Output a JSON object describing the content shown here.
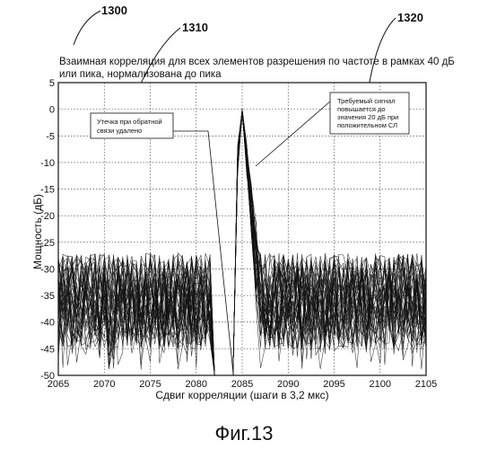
{
  "figure": {
    "ref_numbers": {
      "main": "1300",
      "left_callout": "1310",
      "right_callout": "1320"
    },
    "caption": "Фиг.13"
  },
  "chart_data": {
    "type": "line",
    "title_line1": "Взаимная корреляция для всех элементов разрешения по частоте в рамках 40 дБ",
    "title_line2": "или пика, нормализована до пика",
    "xlabel": "Сдвиг корреляции (шаги в 3,2 мкс)",
    "ylabel": "Мощность (дБ)",
    "xlim": [
      2065,
      2105
    ],
    "ylim": [
      -50,
      5
    ],
    "x_ticks": [
      2065,
      2070,
      2075,
      2080,
      2085,
      2090,
      2095,
      2100,
      2105
    ],
    "y_ticks": [
      5,
      0,
      -5,
      -10,
      -15,
      -20,
      -25,
      -30,
      -35,
      -40,
      -45,
      -50
    ],
    "grid": true,
    "num_traces": 40,
    "noise_floor_db": [
      -45,
      -27
    ],
    "peak": {
      "x": 2085,
      "y": 0
    },
    "notch_x": [
      2082,
      2084
    ],
    "annotations": [
      {
        "id": "1310",
        "lines": [
          "Утечка при обратной",
          "связи удалено"
        ]
      },
      {
        "id": "1320",
        "lines": [
          "Требуемый сигнал",
          "повышается до",
          "значения 20 дБ при",
          "положительном СЛ"
        ]
      }
    ]
  }
}
